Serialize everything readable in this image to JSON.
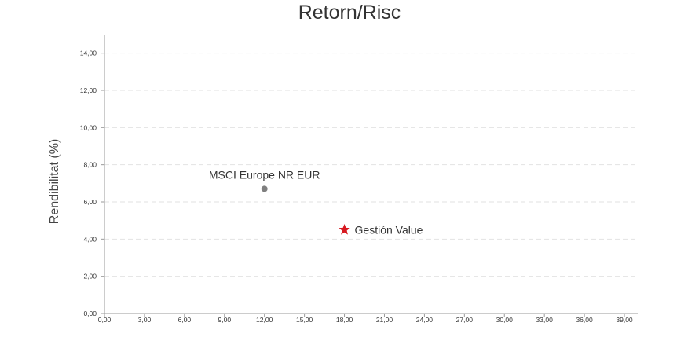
{
  "chart_data": {
    "type": "scatter",
    "title": "Retorn/Risc",
    "xlabel": "",
    "ylabel": "Rendibilitat (%)",
    "xlim": [
      0,
      40
    ],
    "ylim": [
      0,
      15
    ],
    "x_ticks": [
      "0,00",
      "3,00",
      "6,00",
      "9,00",
      "12,00",
      "15,00",
      "18,00",
      "21,00",
      "24,00",
      "27,00",
      "30,00",
      "33,00",
      "36,00",
      "39,00"
    ],
    "y_ticks": [
      "0,00",
      "2,00",
      "4,00",
      "6,00",
      "8,00",
      "10,00",
      "12,00",
      "14,00"
    ],
    "grid": true,
    "series": [
      {
        "name": "MSCI Europe NR EUR",
        "x": 12.0,
        "y": 6.7,
        "marker": "circle",
        "color": "#7f7f7f",
        "label_position": "above"
      },
      {
        "name": "Gestión Value",
        "x": 18.0,
        "y": 4.5,
        "marker": "star",
        "color": "#d71920",
        "label_position": "right"
      }
    ]
  }
}
